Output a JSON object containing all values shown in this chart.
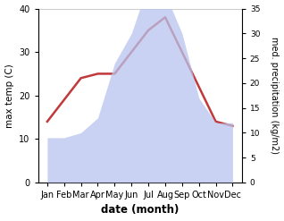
{
  "months": [
    "Jan",
    "Feb",
    "Mar",
    "Apr",
    "May",
    "Jun",
    "Jul",
    "Aug",
    "Sep",
    "Oct",
    "Nov",
    "Dec"
  ],
  "precipitation": [
    9,
    9,
    10,
    13,
    24,
    30,
    40,
    38,
    30,
    17,
    12,
    12
  ],
  "max_temp": [
    14,
    19,
    24,
    25,
    25,
    30,
    35,
    38,
    30,
    22,
    14,
    13
  ],
  "temp_ylim": [
    0,
    40
  ],
  "precip_ylim": [
    0,
    35
  ],
  "temp_yticks": [
    0,
    10,
    20,
    30,
    40
  ],
  "precip_yticks": [
    0,
    5,
    10,
    15,
    20,
    25,
    30,
    35
  ],
  "fill_color": "#b8c4ee",
  "line_color": "#c0393b",
  "line_width": 1.8,
  "ylabel_left": "max temp (C)",
  "ylabel_right": "med. precipitation (kg/m2)",
  "xlabel": "date (month)",
  "bg_color": "#ffffff"
}
